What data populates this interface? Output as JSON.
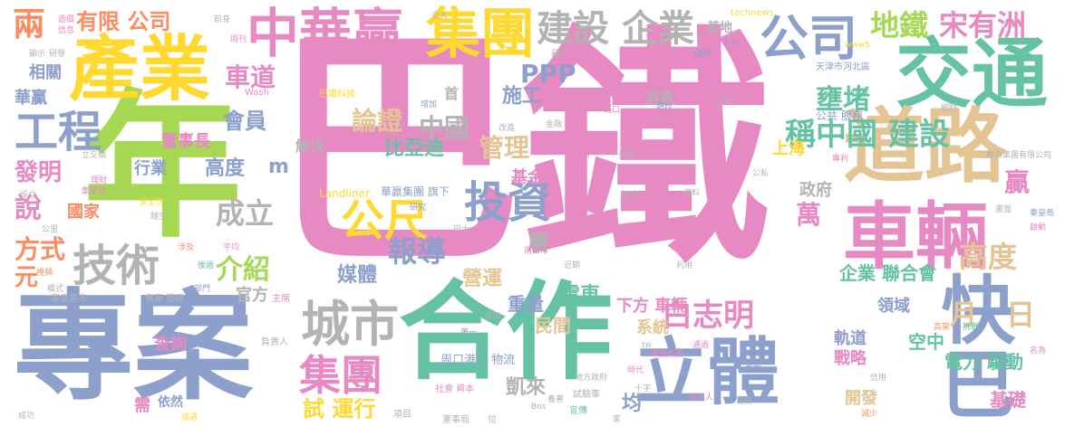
{
  "words": [
    {
      "text": "巴鐵",
      "color": "#e78ac3"
    },
    {
      "text": "年",
      "color": "#a6d854"
    },
    {
      "text": "專案",
      "color": "#8da0cb"
    },
    {
      "text": "合作",
      "color": "#66c2a5"
    },
    {
      "text": "產業",
      "color": "#ffd92f"
    },
    {
      "text": "交通",
      "color": "#66c2a5"
    },
    {
      "text": "道路",
      "color": "#e5c494"
    },
    {
      "text": "車輛",
      "color": "#e78ac3"
    },
    {
      "text": "立體",
      "color": "#8da0cb"
    },
    {
      "text": "快巴",
      "color": "#8da0cb"
    },
    {
      "text": "中華贏",
      "color": "#e78ac3"
    },
    {
      "text": "集團",
      "color": "#ffd92f"
    },
    {
      "text": "公司",
      "color": "#8da0cb"
    },
    {
      "text": "建設",
      "color": "#b3b3b3"
    },
    {
      "text": "企業",
      "color": "#b3b3b3"
    },
    {
      "text": "投資",
      "color": "#8da0cb"
    },
    {
      "text": "技術",
      "color": "#b3b3b3"
    },
    {
      "text": "工程",
      "color": "#8da0cb"
    },
    {
      "text": "城市",
      "color": "#b3b3b3"
    },
    {
      "text": "集團",
      "color": "#e78ac3"
    },
    {
      "text": "公尺",
      "color": "#ffd92f"
    },
    {
      "text": "報導",
      "color": "#8da0cb"
    },
    {
      "text": "稱中國 建設",
      "color": "#66c2a5"
    },
    {
      "text": "地鐵",
      "color": "#a6d854"
    },
    {
      "text": "宋有洲",
      "color": "#e78ac3"
    },
    {
      "text": "壅堵",
      "color": "#66c2a5"
    },
    {
      "text": "白志明",
      "color": "#e78ac3"
    },
    {
      "text": "高度",
      "color": "#e5c494"
    },
    {
      "text": "月",
      "color": "#e5c494"
    },
    {
      "text": "日",
      "color": "#e5c494"
    },
    {
      "text": "兩",
      "color": "#fc8d62"
    },
    {
      "text": "有限 公司",
      "color": "#fc8d62"
    },
    {
      "text": "PPP",
      "color": "#8da0cb"
    },
    {
      "text": "車道",
      "color": "#e78ac3"
    },
    {
      "text": "會員",
      "color": "#8da0cb"
    },
    {
      "text": "論證",
      "color": "#e5c494"
    },
    {
      "text": "中國",
      "color": "#b3b3b3"
    },
    {
      "text": "管理",
      "color": "#e5c494"
    },
    {
      "text": "比亞迪",
      "color": "#66c2a5"
    },
    {
      "text": "成立",
      "color": "#b3b3b3"
    },
    {
      "text": "介紹",
      "color": "#a6d854"
    },
    {
      "text": "發明",
      "color": "#e78ac3"
    },
    {
      "text": "說",
      "color": "#e78ac3"
    },
    {
      "text": "方式",
      "color": "#fc8d62"
    },
    {
      "text": "元",
      "color": "#fc8d62"
    },
    {
      "text": "媒體",
      "color": "#8da0cb"
    },
    {
      "text": "營運",
      "color": "#e5c494"
    },
    {
      "text": "層",
      "color": "#b3b3b3"
    },
    {
      "text": "萬",
      "color": "#e78ac3"
    },
    {
      "text": "贏",
      "color": "#e78ac3"
    },
    {
      "text": "電車",
      "color": "#66c2a5"
    },
    {
      "text": "下方 車輛",
      "color": "#e78ac3"
    },
    {
      "text": "重量",
      "color": "#8da0cb"
    },
    {
      "text": "民間",
      "color": "#e5c494"
    },
    {
      "text": "系統",
      "color": "#e5c494"
    },
    {
      "text": "試 運行",
      "color": "#ffd92f"
    },
    {
      "text": "均",
      "color": "#8da0cb"
    },
    {
      "text": "凱來",
      "color": "#b3b3b3"
    },
    {
      "text": "企業 聯合會",
      "color": "#66c2a5"
    },
    {
      "text": "空中",
      "color": "#66c2a5"
    },
    {
      "text": "電力 驅動",
      "color": "#66c2a5"
    },
    {
      "text": "軌道",
      "color": "#8da0cb"
    },
    {
      "text": "戰略",
      "color": "#e78ac3"
    },
    {
      "text": "開發",
      "color": "#e5c494"
    },
    {
      "text": "基礎",
      "color": "#e78ac3"
    },
    {
      "text": "領域",
      "color": "#8da0cb"
    },
    {
      "text": "政府",
      "color": "#b3b3b3"
    },
    {
      "text": "上海",
      "color": "#ffd92f"
    },
    {
      "text": "施工",
      "color": "#8da0cb"
    },
    {
      "text": "基金",
      "color": "#e78ac3"
    },
    {
      "text": "消息",
      "color": "#b3b3b3"
    },
    {
      "text": "高度",
      "color": "#8da0cb"
    },
    {
      "text": "m",
      "color": "#8da0cb"
    },
    {
      "text": "行業",
      "color": "#8da0cb"
    },
    {
      "text": "國家",
      "color": "#fc8d62"
    },
    {
      "text": "董事長",
      "color": "#e78ac3"
    },
    {
      "text": "相關",
      "color": "#8da0cb"
    },
    {
      "text": "華贏",
      "color": "#8da0cb"
    },
    {
      "text": "解決",
      "color": "#b3b3b3"
    },
    {
      "text": "官方",
      "color": "#b3b3b3"
    },
    {
      "text": "查詢",
      "color": "#e78ac3"
    },
    {
      "text": "需",
      "color": "#e78ac3"
    },
    {
      "text": "依然",
      "color": "#8da0cb"
    },
    {
      "text": "周口港口 物流",
      "color": "#8da0cb"
    },
    {
      "text": "首",
      "color": "#b3b3b3"
    },
    {
      "text": "基地",
      "color": "#b3b3b3"
    },
    {
      "text": "華贏集團 旗下",
      "color": "#8da0cb"
    },
    {
      "text": "Landliner",
      "color": "#ffd92f"
    },
    {
      "text": "巴鐵科技",
      "color": "#ffd92f"
    },
    {
      "text": "公共 服務",
      "color": "#8da0cb"
    },
    {
      "text": "天津市河北區",
      "color": "#8da0cb"
    },
    {
      "text": "technews",
      "color": "#ffd92f"
    },
    {
      "text": "秦皇島市",
      "color": "#b3b3b3"
    },
    {
      "text": "資產 管理",
      "color": "#b3b3b3"
    },
    {
      "text": "主席",
      "color": "#e78ac3"
    },
    {
      "text": "負責人",
      "color": "#b3b3b3"
    },
    {
      "text": "社會 資本",
      "color": "#e78ac3"
    },
    {
      "text": "試驗車",
      "color": "#b3b3b3"
    },
    {
      "text": "宣傳",
      "color": "#66c2a5"
    },
    {
      "text": "項目",
      "color": "#b3b3b3"
    },
    {
      "text": "董事局",
      "color": "#b3b3b3"
    },
    {
      "text": "位",
      "color": "#b3b3b3"
    },
    {
      "text": "成功",
      "color": "#b3b3b3"
    },
    {
      "text": "協通",
      "color": "#ffd92f"
    },
    {
      "text": "航客量",
      "color": "#8da0cb"
    },
    {
      "text": "聯合集團有限公司",
      "color": "#b3b3b3"
    },
    {
      "text": "www5",
      "color": "#ffd92f"
    },
    {
      "text": "Wash",
      "color": "#e78ac3"
    },
    {
      "text": "投資人",
      "color": "#e78ac3"
    },
    {
      "text": "註冊",
      "color": "#b3b3b3"
    },
    {
      "text": "減少",
      "color": "#fc8d62"
    },
    {
      "text": "利用",
      "color": "#b3b3b3"
    },
    {
      "text": "近期",
      "color": "#b3b3b3"
    },
    {
      "text": "周口市",
      "color": "#e78ac3"
    },
    {
      "text": "巴士",
      "color": "#b3b3b3"
    },
    {
      "text": "研究",
      "color": "#8da0cb"
    },
    {
      "text": "參加",
      "color": "#b3b3b3"
    },
    {
      "text": "第一",
      "color": "#8da0cb"
    },
    {
      "text": "時代",
      "color": "#e78ac3"
    },
    {
      "text": "地方政府",
      "color": "#b3b3b3"
    },
    {
      "text": "通過",
      "color": "#e78ac3"
    },
    {
      "text": "事故",
      "color": "#8da0cb"
    },
    {
      "text": "信用",
      "color": "#b3b3b3"
    },
    {
      "text": "高架",
      "color": "#fc8d62"
    },
    {
      "text": "挑戰",
      "color": "#66c2a5"
    },
    {
      "text": "名為",
      "color": "#e78ac3"
    },
    {
      "text": "前身",
      "color": "#b3b3b3"
    },
    {
      "text": "交大",
      "color": "#b3b3b3"
    },
    {
      "text": "造價",
      "color": "#e78ac3"
    },
    {
      "text": "信息",
      "color": "#e78ac3"
    },
    {
      "text": "顯示",
      "color": "#b3b3b3"
    },
    {
      "text": "研發",
      "color": "#b3b3b3"
    },
    {
      "text": "最佳",
      "color": "#b3b3b3"
    },
    {
      "text": "優點",
      "color": "#8da0cb"
    },
    {
      "text": "經濟",
      "color": "#b3b3b3"
    },
    {
      "text": "路段",
      "color": "#8da0cb"
    },
    {
      "text": "路口",
      "color": "#e78ac3"
    },
    {
      "text": "金融",
      "color": "#b3b3b3"
    },
    {
      "text": "增加",
      "color": "#8da0cb"
    },
    {
      "text": "改進",
      "color": "#b3b3b3"
    },
    {
      "text": "圖片",
      "color": "#e78ac3"
    },
    {
      "text": "美國",
      "color": "#b3b3b3"
    },
    {
      "text": "設立",
      "color": "#b3b3b3"
    },
    {
      "text": "安全性",
      "color": "#ffd92f"
    },
    {
      "text": "隧空",
      "color": "#b3b3b3"
    },
    {
      "text": "涉及",
      "color": "#fc8d62"
    },
    {
      "text": "平均",
      "color": "#e78ac3"
    },
    {
      "text": "部門",
      "color": "#8da0cb"
    },
    {
      "text": "後過",
      "color": "#66c2a5"
    },
    {
      "text": "公里",
      "color": "#b3b3b3"
    },
    {
      "text": "視頻",
      "color": "#fc8d62"
    },
    {
      "text": "模式",
      "color": "#b3b3b3"
    },
    {
      "text": "理財",
      "color": "#e78ac3"
    },
    {
      "text": "十字",
      "color": "#b3b3b3"
    },
    {
      "text": "華麗集團",
      "color": "#e78ac3"
    },
    {
      "text": "養著",
      "color": "#b3b3b3"
    },
    {
      "text": "家",
      "color": "#b3b3b3"
    },
    {
      "text": "Bos",
      "color": "#b3b3b3"
    },
    {
      "text": "tw",
      "color": "#b3b3b3"
    },
    {
      "text": "周刊",
      "color": "#e78ac3"
    },
    {
      "text": "立交橋",
      "color": "#b3b3b3"
    },
    {
      "text": "集聚區",
      "color": "#e78ac3"
    },
    {
      "text": "秦皇島",
      "color": "#8da0cb"
    },
    {
      "text": "啟動",
      "color": "#e78ac3"
    },
    {
      "text": "專利",
      "color": "#e78ac3"
    },
    {
      "text": "公私",
      "color": "#b3b3b3"
    },
    {
      "text": "資料",
      "color": "#b3b3b3"
    },
    {
      "text": "資金",
      "color": "#b3b3b3"
    },
    {
      "text": "www",
      "color": "#66c2a5"
    },
    {
      "text": "網野",
      "color": "#b3b3b3"
    },
    {
      "text": "畫面",
      "color": "#b3b3b3"
    },
    {
      "text": "下方",
      "color": "#8da0cb"
    }
  ]
}
